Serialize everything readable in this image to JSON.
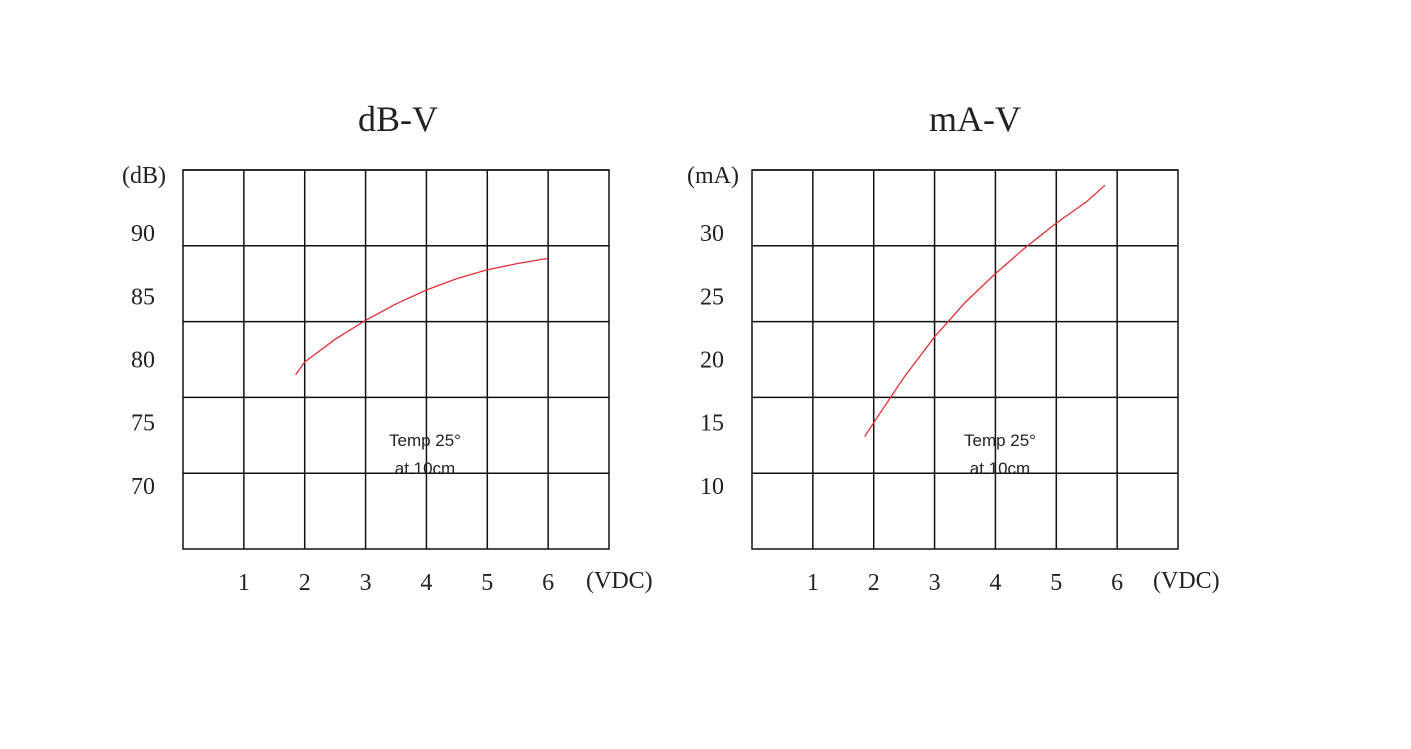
{
  "chart_data": [
    {
      "type": "line",
      "title": "dB-V",
      "y_unit": "(dB)",
      "x_unit": "(VDC)",
      "x_ticks": [
        "1",
        "2",
        "3",
        "4",
        "5",
        "6"
      ],
      "y_ticks": [
        "90",
        "85",
        "80",
        "75",
        "70"
      ],
      "xlim": [
        0,
        7
      ],
      "ylim": [
        65,
        95
      ],
      "grid": true,
      "annotation": [
        "Temp 25°",
        "at 10cm"
      ],
      "series": [
        {
          "color": "#e0303a",
          "x": [
            1.85,
            2.0,
            2.5,
            3.0,
            3.5,
            4.0,
            4.5,
            5.0,
            5.5,
            6.0
          ],
          "y": [
            78.8,
            79.8,
            81.6,
            83.1,
            84.4,
            85.5,
            86.4,
            87.1,
            87.6,
            88.0
          ]
        }
      ]
    },
    {
      "type": "line",
      "title": "mA-V",
      "y_unit": "(mA)",
      "x_unit": "(VDC)",
      "x_ticks": [
        "1",
        "2",
        "3",
        "4",
        "5",
        "6"
      ],
      "y_ticks": [
        "30",
        "25",
        "20",
        "15",
        "10"
      ],
      "xlim": [
        0,
        7
      ],
      "ylim": [
        5,
        35
      ],
      "grid": true,
      "annotation": [
        "Temp 25°",
        "at 10cm"
      ],
      "series": [
        {
          "color": "#e0303a",
          "x": [
            1.85,
            2.0,
            2.5,
            3.0,
            3.5,
            4.0,
            4.5,
            5.0,
            5.5,
            5.8
          ],
          "y": [
            13.9,
            15.0,
            18.6,
            21.8,
            24.5,
            26.8,
            28.9,
            30.8,
            32.5,
            33.8
          ]
        }
      ]
    }
  ]
}
